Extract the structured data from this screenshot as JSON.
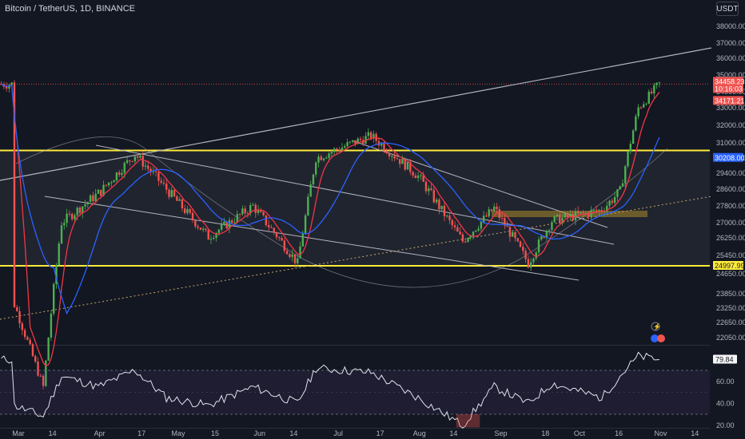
{
  "header": {
    "title": "Bitcoin / TetherUS, 1D, BINANCE",
    "unit": "USDT"
  },
  "colors": {
    "background": "#131722",
    "up": "#26a69a",
    "up_bright": "#4caf50",
    "down": "#ef5350",
    "ma_fast": "#f23645",
    "ma_slow": "#2962ff",
    "level_line": "#ffeb3b",
    "trend_line": "#b2b5be",
    "rsi_line": "#e0e3eb",
    "grid_text": "#b2b5be"
  },
  "chart_data": [
    {
      "type": "candlestick",
      "title": "Bitcoin / TetherUS, 1D, BINANCE",
      "x_tick_labels": [
        "Mar",
        "14",
        "Apr",
        "17",
        "May",
        "15",
        "Jun",
        "14",
        "Jul",
        "17",
        "Aug",
        "14",
        "Sep",
        "18",
        "Oct",
        "16",
        "Nov",
        "14"
      ],
      "y_tick_labels": [
        38000,
        37000,
        36000,
        35000,
        34000,
        33000,
        32000,
        31000,
        30200,
        29400,
        28600,
        27800,
        27000,
        26250,
        25450,
        24650,
        23850,
        23250,
        22650,
        22050
      ],
      "price_markers": [
        {
          "label": "34458.23",
          "kind": "last_price"
        },
        {
          "label": "10:16:03",
          "kind": "countdown"
        },
        {
          "label": "34171.21",
          "kind": "ma_fast"
        },
        {
          "label": "30208.00",
          "kind": "ma_slow"
        },
        {
          "label": "24997.99",
          "kind": "support_level"
        }
      ],
      "horizontal_levels": [
        30600,
        24997.99
      ],
      "ohlc_approx": [
        {
          "date": "2023-02-27",
          "close": 23400
        },
        {
          "date": "2023-03-10",
          "close": 20100
        },
        {
          "date": "2023-03-17",
          "close": 27000
        },
        {
          "date": "2023-04-01",
          "close": 28500
        },
        {
          "date": "2023-04-14",
          "close": 30400
        },
        {
          "date": "2023-04-26",
          "close": 28600
        },
        {
          "date": "2023-05-12",
          "close": 26300
        },
        {
          "date": "2023-05-29",
          "close": 27800
        },
        {
          "date": "2023-06-15",
          "close": 25100
        },
        {
          "date": "2023-06-22",
          "close": 30200
        },
        {
          "date": "2023-07-13",
          "close": 31400
        },
        {
          "date": "2023-07-31",
          "close": 29250
        },
        {
          "date": "2023-08-17",
          "close": 26100
        },
        {
          "date": "2023-08-29",
          "close": 27700
        },
        {
          "date": "2023-09-11",
          "close": 25100
        },
        {
          "date": "2023-09-20",
          "close": 27100
        },
        {
          "date": "2023-10-09",
          "close": 27600
        },
        {
          "date": "2023-10-16",
          "close": 28500
        },
        {
          "date": "2023-10-23",
          "close": 33000
        },
        {
          "date": "2023-10-31",
          "close": 34458.23
        }
      ]
    },
    {
      "type": "line",
      "title": "RSI",
      "y_tick_labels": [
        60.0,
        40.0,
        20.0
      ],
      "current_value_label": "79.84",
      "bands": [
        70,
        30
      ],
      "midline": 50,
      "values_approx": [
        {
          "date": "2023-02-27",
          "value": 38
        },
        {
          "date": "2023-03-10",
          "value": 28
        },
        {
          "date": "2023-03-17",
          "value": 65
        },
        {
          "date": "2023-03-31",
          "value": 55
        },
        {
          "date": "2023-04-14",
          "value": 70
        },
        {
          "date": "2023-04-26",
          "value": 45
        },
        {
          "date": "2023-05-12",
          "value": 38
        },
        {
          "date": "2023-05-29",
          "value": 55
        },
        {
          "date": "2023-06-15",
          "value": 40
        },
        {
          "date": "2023-06-22",
          "value": 72
        },
        {
          "date": "2023-07-13",
          "value": 68
        },
        {
          "date": "2023-07-31",
          "value": 45
        },
        {
          "date": "2023-08-17",
          "value": 20
        },
        {
          "date": "2023-08-29",
          "value": 55
        },
        {
          "date": "2023-09-11",
          "value": 40
        },
        {
          "date": "2023-09-20",
          "value": 58
        },
        {
          "date": "2023-10-09",
          "value": 45
        },
        {
          "date": "2023-10-16",
          "value": 65
        },
        {
          "date": "2023-10-23",
          "value": 83
        },
        {
          "date": "2023-10-31",
          "value": 79.84
        }
      ]
    }
  ]
}
